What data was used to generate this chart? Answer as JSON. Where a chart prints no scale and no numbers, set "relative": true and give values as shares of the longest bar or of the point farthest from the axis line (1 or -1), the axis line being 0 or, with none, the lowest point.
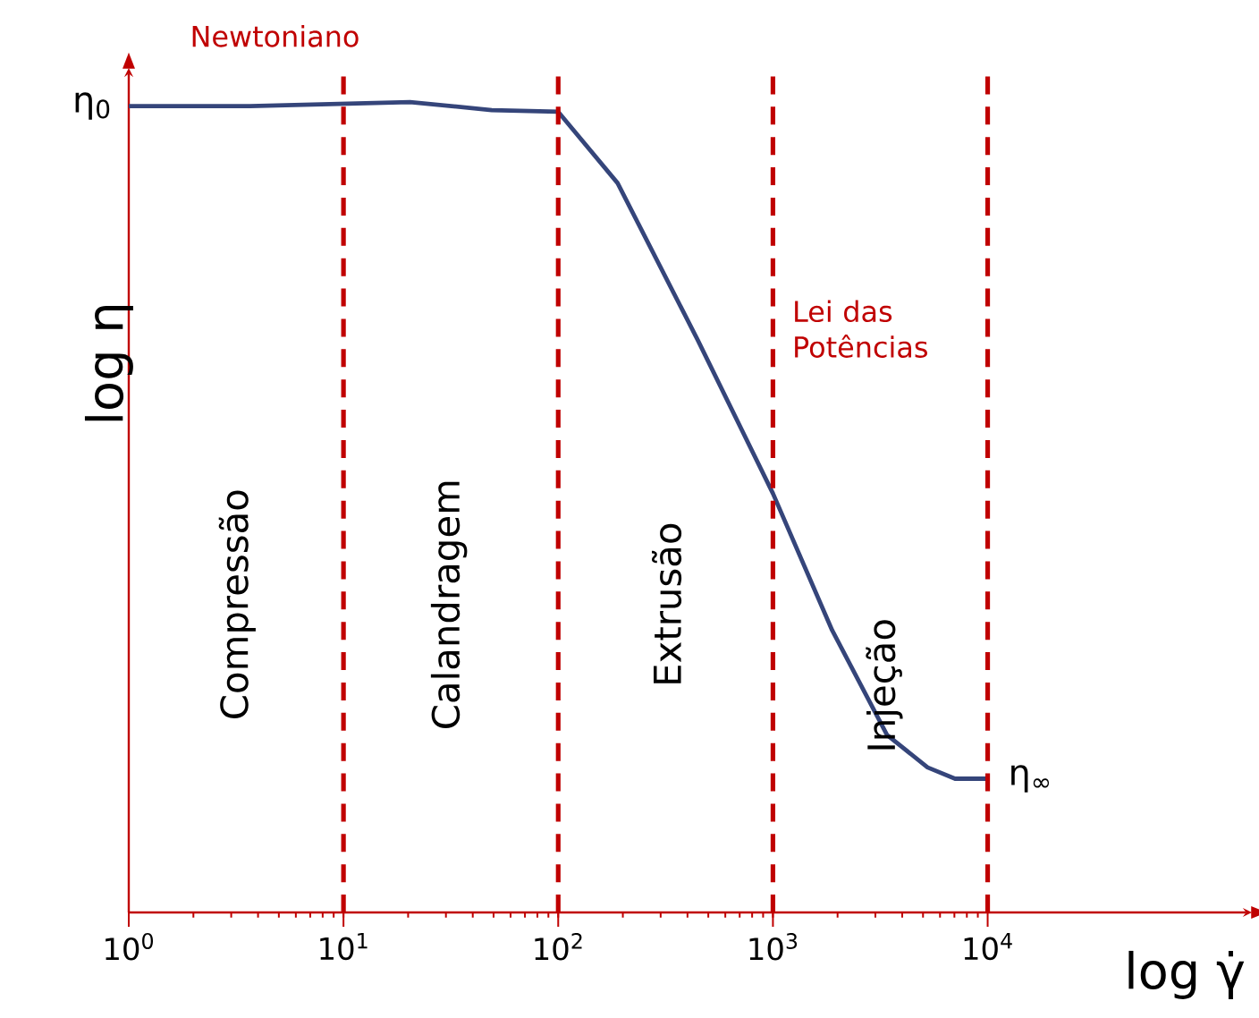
{
  "chart_data": {
    "type": "line",
    "relative": true,
    "log": "x",
    "xlabel": "log γ̇",
    "ylabel": "log η",
    "xlim": [
      1,
      170000
    ],
    "xticks": [
      {
        "value": 1,
        "label": "10$^{0}$"
      },
      {
        "value": 10,
        "label": "10$^{1}$"
      },
      {
        "value": 100,
        "label": "10$^{2}$"
      },
      {
        "value": 1000,
        "label": "10$^{3}$"
      },
      {
        "value": 10000,
        "label": "10$^{4}$"
      }
    ],
    "x": [
      1,
      3.67,
      20.4,
      49,
      100,
      189,
      447,
      1000,
      1888,
      3400,
      5250,
      7050,
      10000
    ],
    "series": [
      {
        "color": "#35457a",
        "values": [
          0.995,
          0.995,
          1,
          0.99,
          0.988,
          0.9,
          0.706,
          0.517,
          0.348,
          0.219,
          0.179,
          0.165,
          0.165
        ]
      }
    ],
    "ref_lines": [
      {
        "axis": "x",
        "value": 10,
        "color": "#c00000",
        "line_style": "dashed"
      },
      {
        "axis": "x",
        "value": 100,
        "color": "#c00000",
        "line_style": "dashed"
      },
      {
        "axis": "x",
        "value": 1000,
        "color": "#c00000",
        "line_style": "dashed"
      },
      {
        "axis": "x",
        "value": 10000,
        "color": "#c00000",
        "line_style": "dashed"
      }
    ],
    "annotations": [
      {
        "text": "η$_{0}$",
        "x": 1,
        "y": 0.995
      },
      {
        "text": "η$_{∞}$",
        "x": 10000,
        "y": 0.165
      },
      "Newtoniano",
      "Lei das Potências",
      "Compressão",
      "Calandragem",
      "Extrusão",
      "Injeção"
    ],
    "grid": false,
    "marker": "none",
    "line_style": "solid"
  }
}
